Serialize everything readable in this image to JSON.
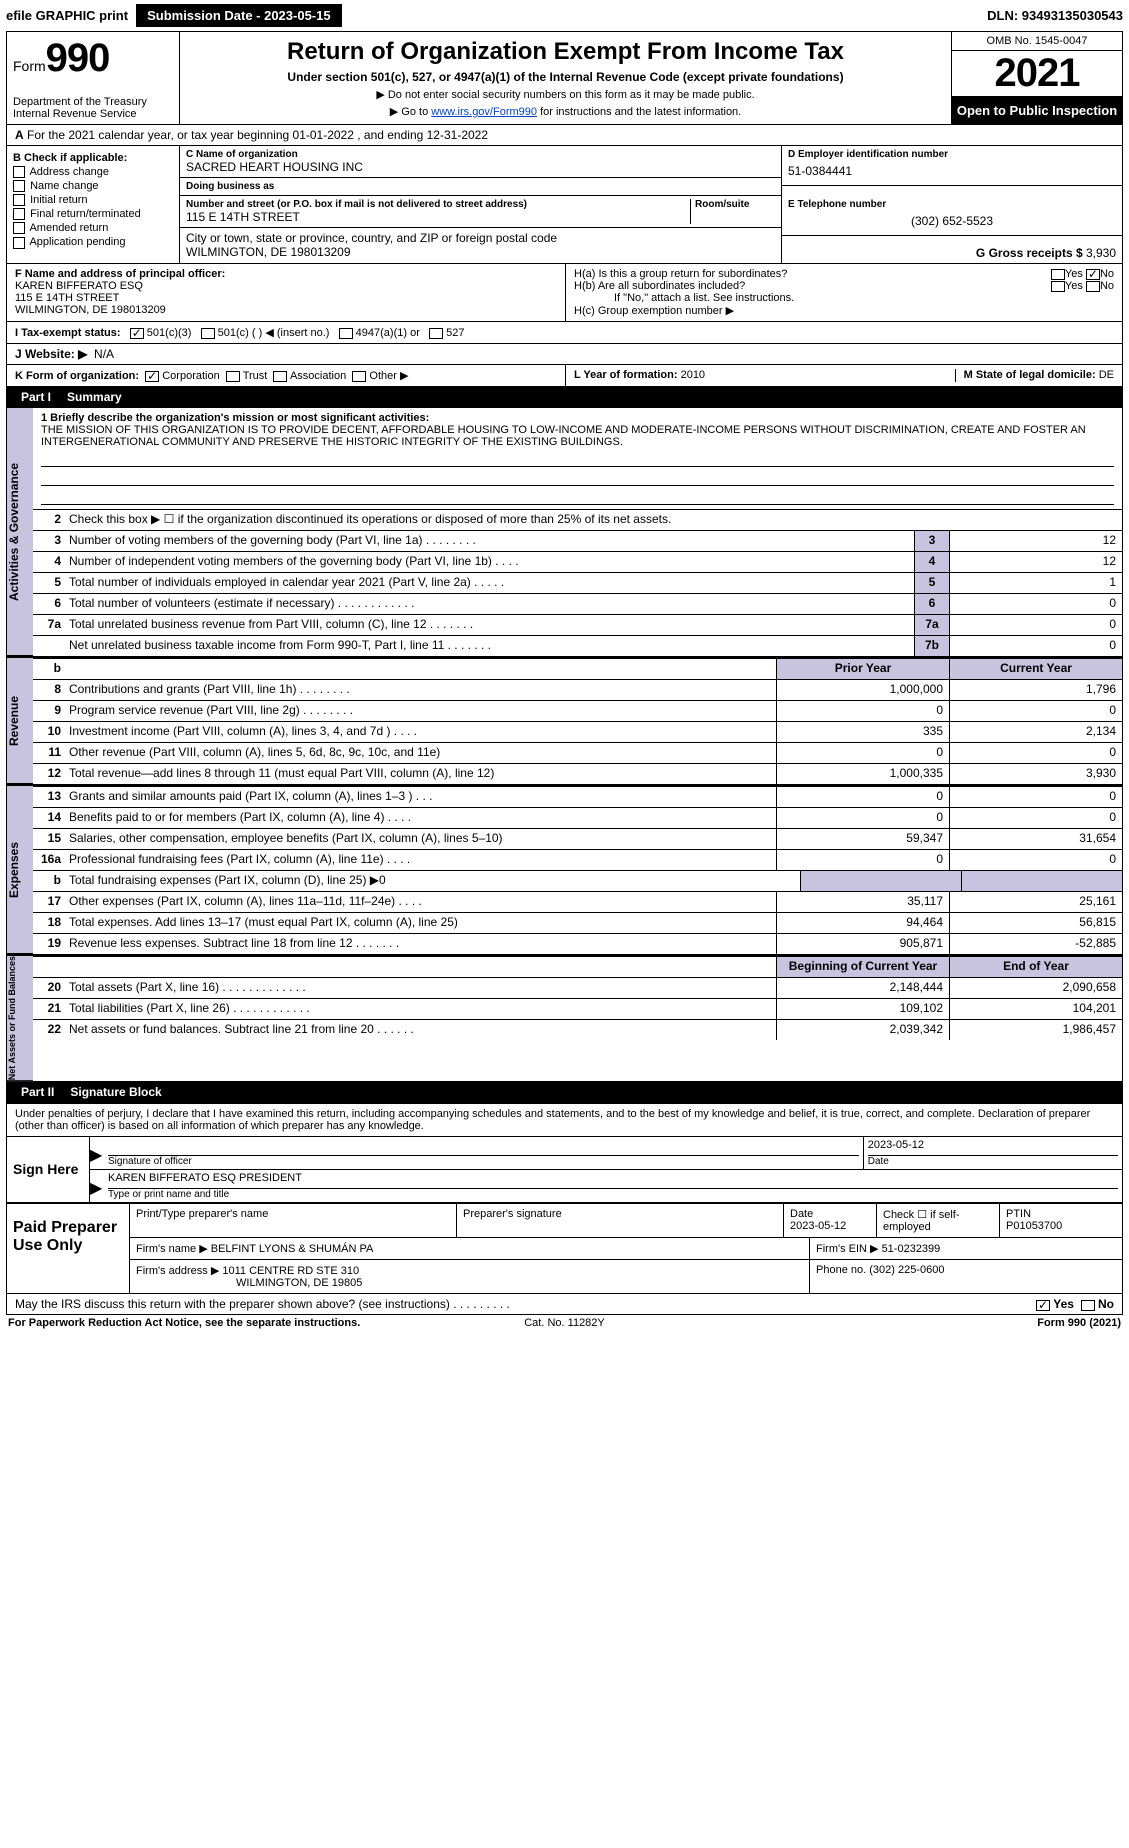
{
  "topbar": {
    "efile": "efile GRAPHIC print",
    "submission_label": "Submission Date - 2023-05-15",
    "dln": "DLN: 93493135030543"
  },
  "header": {
    "form_prefix": "Form",
    "form_number": "990",
    "dept": "Department of the Treasury",
    "irs": "Internal Revenue Service",
    "title": "Return of Organization Exempt From Income Tax",
    "sub": "Under section 501(c), 527, or 4947(a)(1) of the Internal Revenue Code (except private foundations)",
    "noSSN": "▶ Do not enter social security numbers on this form as it may be made public.",
    "goto_pre": "▶ Go to ",
    "goto_link": "www.irs.gov/Form990",
    "goto_post": " for instructions and the latest information.",
    "omb": "OMB No. 1545-0047",
    "year": "2021",
    "open": "Open to Public Inspection"
  },
  "line_a": "For the 2021 calendar year, or tax year beginning 01-01-2022   , and ending 12-31-2022",
  "checkB": {
    "title": "B Check if applicable:",
    "items": [
      "Address change",
      "Name change",
      "Initial return",
      "Final return/terminated",
      "Amended return",
      "Application pending"
    ]
  },
  "entity": {
    "c_label": "C Name of organization",
    "c_name": "SACRED HEART HOUSING INC",
    "dba_label": "Doing business as",
    "dba": "",
    "addr_label": "Number and street (or P.O. box if mail is not delivered to street address)",
    "room_label": "Room/suite",
    "addr": "115 E 14TH STREET",
    "city_label": "City or town, state or province, country, and ZIP or foreign postal code",
    "city": "WILMINGTON, DE  198013209",
    "d_label": "D Employer identification number",
    "d_ein": "51-0384441",
    "e_label": "E Telephone number",
    "e_phone": "(302) 652-5523",
    "g_label": "G Gross receipts $",
    "g_amount": "3,930"
  },
  "fBlock": {
    "f_label": "F Name and address of principal officer:",
    "f_name": "KAREN BIFFERATO ESQ",
    "f_addr1": "115 E 14TH STREET",
    "f_addr2": "WILMINGTON, DE  198013209",
    "h_a": "H(a)  Is this a group return for subordinates?",
    "h_b": "H(b)  Are all subordinates included?",
    "h_no_instr": "If \"No,\" attach a list. See instructions.",
    "h_c": "H(c)  Group exemption number ▶",
    "yes": "Yes",
    "no": "No"
  },
  "i_line": {
    "label": "I  Tax-exempt status:",
    "c3": "501(c)(3)",
    "cOther": "501(c) (  ) ◀ (insert no.)",
    "a1": "4947(a)(1) or",
    "s527": "527"
  },
  "j_line": {
    "label": "J  Website: ▶",
    "value": "N/A"
  },
  "k_line": {
    "label": "K Form of organization:",
    "corp": "Corporation",
    "trust": "Trust",
    "assoc": "Association",
    "other": "Other ▶",
    "l_label": "L Year of formation:",
    "l_val": "2010",
    "m_label": "M State of legal domicile:",
    "m_val": "DE"
  },
  "partI": {
    "tab": "Part I",
    "title": "Summary"
  },
  "mission": {
    "label": "1  Briefly describe the organization's mission or most significant activities:",
    "text": "THE MISSION OF THIS ORGANIZATION IS TO PROVIDE DECENT, AFFORDABLE HOUSING TO LOW-INCOME AND MODERATE-INCOME PERSONS WITHOUT DISCRIMINATION, CREATE AND FOSTER AN INTERGENERATIONAL COMMUNITY AND PRESERVE THE HISTORIC INTEGRITY OF THE EXISTING BUILDINGS."
  },
  "gov": {
    "tab": "Activities & Governance",
    "l2": "Check this box ▶ ☐ if the organization discontinued its operations or disposed of more than 25% of its net assets.",
    "rows": [
      {
        "n": "3",
        "t": "Number of voting members of the governing body (Part VI, line 1a)  .   .   .   .   .   .   .   .",
        "bx": "3",
        "v": "12"
      },
      {
        "n": "4",
        "t": "Number of independent voting members of the governing body (Part VI, line 1b)   .   .   .   .",
        "bx": "4",
        "v": "12"
      },
      {
        "n": "5",
        "t": "Total number of individuals employed in calendar year 2021 (Part V, line 2a)   .   .   .   .   .",
        "bx": "5",
        "v": "1"
      },
      {
        "n": "6",
        "t": "Total number of volunteers (estimate if necessary)    .   .   .   .   .   .   .   .   .   .   .   .",
        "bx": "6",
        "v": "0"
      },
      {
        "n": "7a",
        "t": "Total unrelated business revenue from Part VIII, column (C), line 12   .   .   .   .   .   .   .",
        "bx": "7a",
        "v": "0"
      },
      {
        "n": "",
        "t": "Net unrelated business taxable income from Form 990-T, Part I, line 11   .   .   .   .   .   .   .",
        "bx": "7b",
        "v": "0"
      }
    ]
  },
  "rev": {
    "tab": "Revenue",
    "header_prior": "Prior Year",
    "header_curr": "Current Year",
    "rows": [
      {
        "n": "8",
        "t": "Contributions and grants (Part VIII, line 1h)   .   .   .   .   .   .   .   .",
        "p": "1,000,000",
        "c": "1,796"
      },
      {
        "n": "9",
        "t": "Program service revenue (Part VIII, line 2g)   .   .   .   .   .   .   .   .",
        "p": "0",
        "c": "0"
      },
      {
        "n": "10",
        "t": "Investment income (Part VIII, column (A), lines 3, 4, and 7d )   .   .   .   .",
        "p": "335",
        "c": "2,134"
      },
      {
        "n": "11",
        "t": "Other revenue (Part VIII, column (A), lines 5, 6d, 8c, 9c, 10c, and 11e)",
        "p": "0",
        "c": "0"
      },
      {
        "n": "12",
        "t": "Total revenue—add lines 8 through 11 (must equal Part VIII, column (A), line 12)",
        "p": "1,000,335",
        "c": "3,930"
      }
    ]
  },
  "exp": {
    "tab": "Expenses",
    "rows": [
      {
        "n": "13",
        "t": "Grants and similar amounts paid (Part IX, column (A), lines 1–3 )  .   .   .",
        "p": "0",
        "c": "0"
      },
      {
        "n": "14",
        "t": "Benefits paid to or for members (Part IX, column (A), line 4)  .   .   .   .",
        "p": "0",
        "c": "0"
      },
      {
        "n": "15",
        "t": "Salaries, other compensation, employee benefits (Part IX, column (A), lines 5–10)",
        "p": "59,347",
        "c": "31,654"
      },
      {
        "n": "16a",
        "t": "Professional fundraising fees (Part IX, column (A), line 11e)   .   .   .   .",
        "p": "0",
        "c": "0"
      },
      {
        "n": "b",
        "t": "Total fundraising expenses (Part IX, column (D), line 25) ▶0",
        "p": "",
        "c": "",
        "shade": true
      },
      {
        "n": "17",
        "t": "Other expenses (Part IX, column (A), lines 11a–11d, 11f–24e)   .   .   .   .",
        "p": "35,117",
        "c": "25,161"
      },
      {
        "n": "18",
        "t": "Total expenses. Add lines 13–17 (must equal Part IX, column (A), line 25)",
        "p": "94,464",
        "c": "56,815"
      },
      {
        "n": "19",
        "t": "Revenue less expenses. Subtract line 18 from line 12  .   .   .   .   .   .   .",
        "p": "905,871",
        "c": "-52,885"
      }
    ]
  },
  "net": {
    "tab": "Net Assets or Fund Balances",
    "header_prior": "Beginning of Current Year",
    "header_curr": "End of Year",
    "rows": [
      {
        "n": "20",
        "t": "Total assets (Part X, line 16)  .   .   .   .   .   .   .   .   .   .   .   .   .",
        "p": "2,148,444",
        "c": "2,090,658"
      },
      {
        "n": "21",
        "t": "Total liabilities (Part X, line 26)  .   .   .   .   .   .   .   .   .   .   .   .",
        "p": "109,102",
        "c": "104,201"
      },
      {
        "n": "22",
        "t": "Net assets or fund balances. Subtract line 21 from line 20  .   .   .   .   .   .",
        "p": "2,039,342",
        "c": "1,986,457"
      }
    ]
  },
  "partII": {
    "tab": "Part II",
    "title": "Signature Block"
  },
  "penalty": "Under penalties of perjury, I declare that I have examined this return, including accompanying schedules and statements, and to the best of my knowledge and belief, it is true, correct, and complete. Declaration of preparer (other than officer) is based on all information of which preparer has any knowledge.",
  "sign": {
    "label": "Sign Here",
    "sig_officer": "Signature of officer",
    "date_label": "Date",
    "date": "2023-05-12",
    "name": "KAREN BIFFERATO ESQ  PRESIDENT",
    "name_label": "Type or print name and title"
  },
  "paid": {
    "label": "Paid Preparer Use Only",
    "prep_name_label": "Print/Type preparer's name",
    "prep_sig_label": "Preparer's signature",
    "date_label": "Date",
    "date": "2023-05-12",
    "check_label": "Check ☐ if self-employed",
    "ptin_label": "PTIN",
    "ptin": "P01053700",
    "firm_name_label": "Firm's name    ▶",
    "firm_name": "BELFINT LYONS & SHUMÁN PA",
    "firm_ein_label": "Firm's EIN ▶",
    "firm_ein": "51-0232399",
    "firm_addr_label": "Firm's address ▶",
    "firm_addr1": "1011 CENTRE RD STE 310",
    "firm_addr2": "WILMINGTON, DE  19805",
    "phone_label": "Phone no.",
    "phone": "(302) 225-0600"
  },
  "discuss": {
    "text": "May the IRS discuss this return with the preparer shown above? (see instructions)   .   .   .   .   .   .   .   .   .",
    "yes": "Yes",
    "no": "No"
  },
  "footer": {
    "left": "For Paperwork Reduction Act Notice, see the separate instructions.",
    "mid": "Cat. No. 11282Y",
    "right_form": "Form 990 (2021)"
  }
}
